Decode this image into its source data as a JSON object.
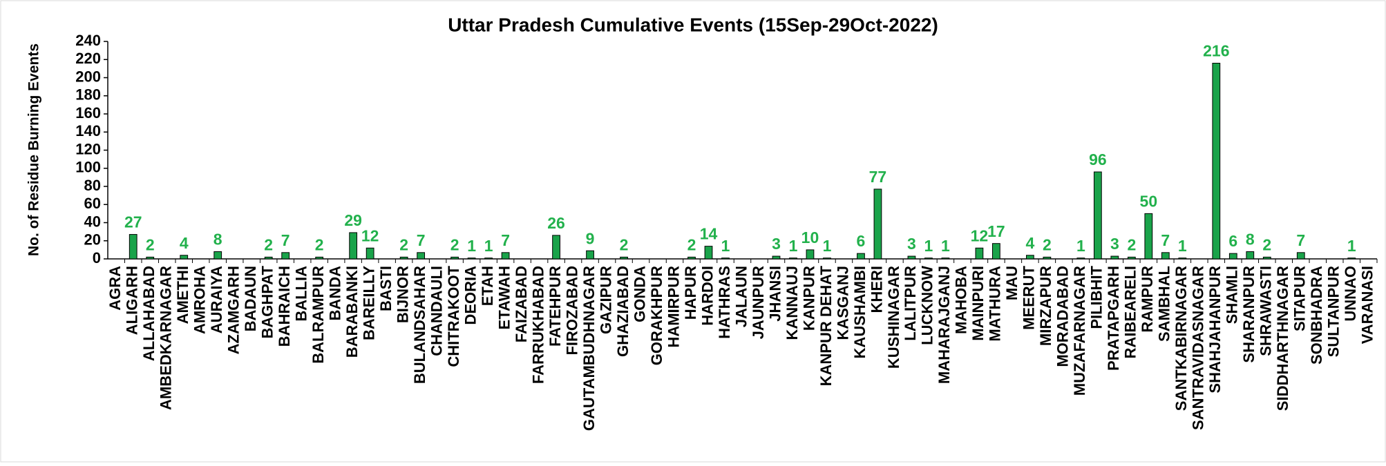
{
  "chart_data": {
    "type": "bar",
    "title": "Uttar Pradesh Cumulative Events (15Sep-29Oct-2022)",
    "y_label": "No. of Residue Burning Events",
    "categories": [
      "AGRA",
      "ALIGARH",
      "ALLAHABAD",
      "AMBEDKARNAGAR",
      "AMETHI",
      "AMROHA",
      "AURAIYA",
      "AZAMGARH",
      "BADAUN",
      "BAGHPAT",
      "BAHRAICH",
      "BALLIA",
      "BALRAMPUR",
      "BANDA",
      "BARABANKI",
      "BAREILLY",
      "BASTI",
      "BIJNOR",
      "BULANDSAHAR",
      "CHANDAULI",
      "CHITRAKOOT",
      "DEORIA",
      "ETAH",
      "ETAWAH",
      "FAIZABAD",
      "FARRUKHABAD",
      "FATEHPUR",
      "FIROZABAD",
      "GAUTAMBUDHNAGAR",
      "GAZIPUR",
      "GHAZIABAD",
      "GONDA",
      "GORAKHPUR",
      "HAMIRPUR",
      "HAPUR",
      "HARDOI",
      "HATHRAS",
      "JALAUN",
      "JAUNPUR",
      "JHANSI",
      "KANNAUJ",
      "KANPUR",
      "KANPUR DEHAT",
      "KASGANJ",
      "KAUSHAMBI",
      "KHERI",
      "KUSHINAGAR",
      "LALITPUR",
      "LUCKNOW",
      "MAHARAJGANJ",
      "MAHOBA",
      "MAINPURI",
      "MATHURA",
      "MAU",
      "MEERUT",
      "MIRZAPUR",
      "MORADABAD",
      "MUZAFARNAGAR",
      "PILIBHIT",
      "PRATAPGARH",
      "RAIBEARELI",
      "RAMPUR",
      "SAMBHAL",
      "SANTKABIRNAGAR",
      "SANTRAVIDASNAGAR",
      "SHAHJAHANPUR",
      "SHAMLI",
      "SHARANPUR",
      "SHRAWASTI",
      "SIDDHARTHNAGAR",
      "SITAPUR",
      "SONBHADRA",
      "SULTANPUR",
      "UNNAO",
      "VARANASI"
    ],
    "values": [
      0,
      27,
      2,
      0,
      4,
      0,
      8,
      0,
      0,
      2,
      7,
      0,
      2,
      0,
      29,
      12,
      0,
      2,
      7,
      0,
      2,
      1,
      1,
      7,
      0,
      0,
      26,
      0,
      9,
      0,
      2,
      0,
      0,
      0,
      2,
      14,
      1,
      0,
      0,
      3,
      1,
      10,
      1,
      0,
      6,
      77,
      0,
      3,
      1,
      1,
      0,
      12,
      17,
      0,
      4,
      2,
      0,
      1,
      96,
      3,
      2,
      50,
      7,
      1,
      0,
      216,
      6,
      8,
      2,
      0,
      7,
      0,
      0,
      1,
      0
    ],
    "color": "#1aa34a",
    "label_color": "#22b14c",
    "ylim": [
      0,
      240
    ],
    "yticks": [
      0,
      20,
      40,
      60,
      80,
      100,
      120,
      140,
      160,
      180,
      200,
      220,
      240
    ],
    "grid": false
  }
}
